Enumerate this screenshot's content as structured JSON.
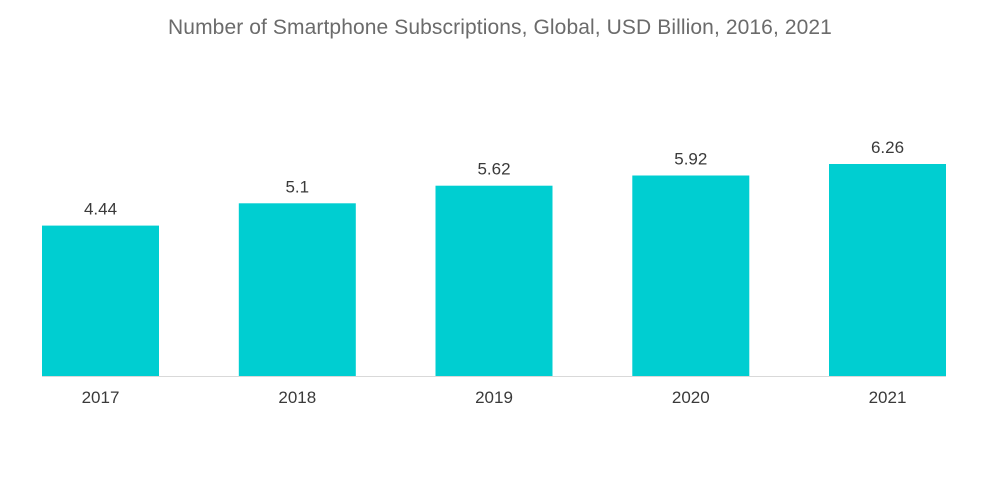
{
  "chart_data": {
    "type": "bar",
    "title": "Number of Smartphone Subscriptions, Global, USD Billion, 2016, 2021",
    "xlabel": "",
    "ylabel": "",
    "categories": [
      "2017",
      "2018",
      "2019",
      "2020",
      "2021"
    ],
    "values": [
      4.44,
      5.1,
      5.62,
      5.92,
      6.26
    ],
    "value_labels": [
      "4.44",
      "5.1",
      "5.62",
      "5.92",
      "6.26"
    ],
    "ylim": [
      0,
      6.26
    ],
    "grid": false,
    "legend": "none",
    "bar_color": "#00ced1",
    "axis_color": "#d9d9d9"
  }
}
